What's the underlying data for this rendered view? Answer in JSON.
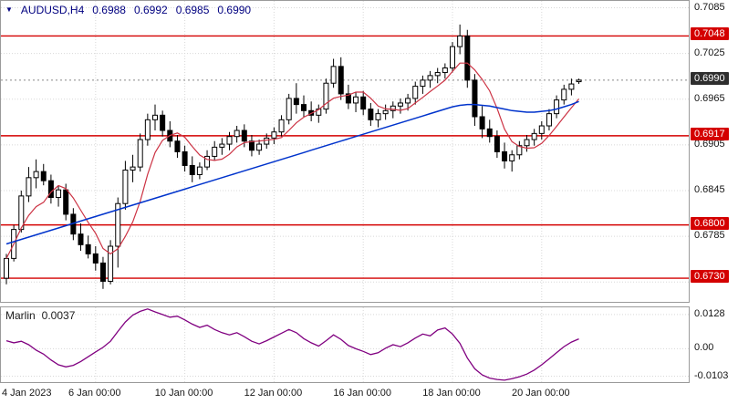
{
  "header": {
    "symbol": "AUDUSD,H4",
    "open": "0.6988",
    "high": "0.6992",
    "low": "0.6985",
    "close": "0.6990"
  },
  "colors": {
    "level_line": "#d40000",
    "level_badge_bg": "#d40000",
    "current_badge_bg": "#2e2e2e",
    "candle_up_fill": "#ffffff",
    "candle_down_fill": "#000000",
    "candle_stroke": "#000000",
    "ma_red": "#cc3344",
    "ma_blue": "#0033cc",
    "marlin_line": "#800080",
    "grid": "#d8d8d8",
    "header_text": "#000080"
  },
  "chart_data": [
    {
      "type": "candlestick",
      "title": "AUDUSD H4 price chart",
      "price_range": [
        0.6699,
        0.7094
      ],
      "grid_prices": [
        0.7085,
        0.7025,
        0.6965,
        0.6905,
        0.6845,
        0.6785,
        0.6725
      ],
      "axis_labels": [
        {
          "text": "0.7085",
          "price": 0.7085
        },
        {
          "text": "0.7025",
          "price": 0.7025
        },
        {
          "text": "0.6965",
          "price": 0.6965
        },
        {
          "text": "0.6905",
          "price": 0.6905
        },
        {
          "text": "0.6845",
          "price": 0.6845
        },
        {
          "text": "0.6785",
          "price": 0.6785
        }
      ],
      "levels": [
        {
          "text": "0.7048",
          "price": 0.7048
        },
        {
          "text": "0.6917",
          "price": 0.6917
        },
        {
          "text": "0.6800",
          "price": 0.68
        },
        {
          "text": "0.6730",
          "price": 0.673
        }
      ],
      "current_price": {
        "text": "0.6990",
        "price": 0.699
      },
      "time_labels": [
        {
          "text": "4 Jan 2023",
          "bar": 0
        },
        {
          "text": "6 Jan 00:00",
          "bar": 12
        },
        {
          "text": "10 Jan 00:00",
          "bar": 24
        },
        {
          "text": "12 Jan 00:00",
          "bar": 36
        },
        {
          "text": "16 Jan 00:00",
          "bar": 48
        },
        {
          "text": "18 Jan 00:00",
          "bar": 60
        },
        {
          "text": "20 Jan 00:00",
          "bar": 72
        }
      ],
      "ma_red_period": 6,
      "candles": [
        [
          0.673,
          0.6762,
          0.6722,
          0.6756
        ],
        [
          0.6756,
          0.68,
          0.6752,
          0.6794
        ],
        [
          0.6794,
          0.6845,
          0.679,
          0.6838
        ],
        [
          0.6838,
          0.6876,
          0.683,
          0.6862
        ],
        [
          0.6862,
          0.6886,
          0.6848,
          0.687
        ],
        [
          0.687,
          0.688,
          0.6852,
          0.6858
        ],
        [
          0.6858,
          0.6866,
          0.6828,
          0.6836
        ],
        [
          0.6836,
          0.6852,
          0.6824,
          0.6846
        ],
        [
          0.6846,
          0.6854,
          0.6806,
          0.6814
        ],
        [
          0.6814,
          0.6822,
          0.678,
          0.6788
        ],
        [
          0.6788,
          0.6802,
          0.6766,
          0.6774
        ],
        [
          0.6774,
          0.6786,
          0.6756,
          0.6762
        ],
        [
          0.6762,
          0.6772,
          0.674,
          0.675
        ],
        [
          0.675,
          0.6758,
          0.6716,
          0.6726
        ],
        [
          0.6726,
          0.678,
          0.6722,
          0.6772
        ],
        [
          0.6772,
          0.6836,
          0.6744,
          0.6828
        ],
        [
          0.6828,
          0.6884,
          0.682,
          0.6872
        ],
        [
          0.6872,
          0.6892,
          0.6856,
          0.6876
        ],
        [
          0.6876,
          0.692,
          0.687,
          0.6912
        ],
        [
          0.6912,
          0.6946,
          0.6904,
          0.6938
        ],
        [
          0.6938,
          0.6958,
          0.6924,
          0.6944
        ],
        [
          0.6944,
          0.695,
          0.6916,
          0.6924
        ],
        [
          0.6924,
          0.6936,
          0.6902,
          0.691
        ],
        [
          0.691,
          0.6918,
          0.6888,
          0.6896
        ],
        [
          0.6896,
          0.6904,
          0.687,
          0.6878
        ],
        [
          0.6878,
          0.689,
          0.6856,
          0.6866
        ],
        [
          0.6866,
          0.6882,
          0.686,
          0.6876
        ],
        [
          0.6876,
          0.6898,
          0.6872,
          0.689
        ],
        [
          0.689,
          0.691,
          0.6884,
          0.6902
        ],
        [
          0.6902,
          0.6914,
          0.6892,
          0.6906
        ],
        [
          0.6906,
          0.6922,
          0.6898,
          0.6916
        ],
        [
          0.6916,
          0.693,
          0.6908,
          0.6924
        ],
        [
          0.6924,
          0.6932,
          0.6902,
          0.691
        ],
        [
          0.691,
          0.6918,
          0.689,
          0.6898
        ],
        [
          0.6898,
          0.6912,
          0.6892,
          0.6906
        ],
        [
          0.6906,
          0.692,
          0.69,
          0.6914
        ],
        [
          0.6914,
          0.6928,
          0.6906,
          0.6922
        ],
        [
          0.6922,
          0.6944,
          0.6916,
          0.6938
        ],
        [
          0.6938,
          0.6972,
          0.6932,
          0.6966
        ],
        [
          0.6966,
          0.6986,
          0.6946,
          0.6958
        ],
        [
          0.6958,
          0.697,
          0.6942,
          0.695
        ],
        [
          0.695,
          0.6962,
          0.6936,
          0.6944
        ],
        [
          0.6944,
          0.6958,
          0.6934,
          0.6952
        ],
        [
          0.6952,
          0.6992,
          0.6946,
          0.6986
        ],
        [
          0.6986,
          0.7018,
          0.698,
          0.7008
        ],
        [
          0.7008,
          0.702,
          0.6964,
          0.6972
        ],
        [
          0.6972,
          0.6984,
          0.6952,
          0.696
        ],
        [
          0.696,
          0.6974,
          0.6948,
          0.6968
        ],
        [
          0.6968,
          0.6976,
          0.6944,
          0.6952
        ],
        [
          0.6952,
          0.696,
          0.693,
          0.6938
        ],
        [
          0.6938,
          0.6952,
          0.6928,
          0.6946
        ],
        [
          0.6946,
          0.6958,
          0.6938,
          0.695
        ],
        [
          0.695,
          0.6962,
          0.694,
          0.6956
        ],
        [
          0.6956,
          0.6966,
          0.6946,
          0.696
        ],
        [
          0.696,
          0.6972,
          0.695,
          0.6966
        ],
        [
          0.6966,
          0.6988,
          0.6958,
          0.6982
        ],
        [
          0.6982,
          0.6996,
          0.6972,
          0.699
        ],
        [
          0.699,
          0.7002,
          0.698,
          0.6996
        ],
        [
          0.6996,
          0.7006,
          0.6986,
          0.7
        ],
        [
          0.7,
          0.7012,
          0.6992,
          0.7006
        ],
        [
          0.7006,
          0.704,
          0.7,
          0.7034
        ],
        [
          0.7034,
          0.7063,
          0.7024,
          0.7048
        ],
        [
          0.7048,
          0.7056,
          0.698,
          0.699
        ],
        [
          0.699,
          0.6998,
          0.693,
          0.6942
        ],
        [
          0.6942,
          0.6956,
          0.6914,
          0.6926
        ],
        [
          0.6926,
          0.6938,
          0.6908,
          0.6916
        ],
        [
          0.6916,
          0.6924,
          0.6888,
          0.6896
        ],
        [
          0.6896,
          0.6908,
          0.6874,
          0.6884
        ],
        [
          0.6884,
          0.6898,
          0.687,
          0.6892
        ],
        [
          0.6892,
          0.691,
          0.6886,
          0.6904
        ],
        [
          0.6904,
          0.6918,
          0.6896,
          0.6912
        ],
        [
          0.6912,
          0.6926,
          0.6904,
          0.692
        ],
        [
          0.692,
          0.6936,
          0.6912,
          0.693
        ],
        [
          0.693,
          0.6952,
          0.6924,
          0.6946
        ],
        [
          0.6946,
          0.697,
          0.694,
          0.6964
        ],
        [
          0.6964,
          0.6984,
          0.6958,
          0.6978
        ],
        [
          0.6978,
          0.6992,
          0.697,
          0.6985
        ],
        [
          0.6988,
          0.6992,
          0.6985,
          0.699
        ]
      ],
      "ma_blue": [
        0.6775,
        0.6778,
        0.6781,
        0.6784,
        0.6787,
        0.679,
        0.6793,
        0.6796,
        0.6799,
        0.6802,
        0.6805,
        0.6808,
        0.6811,
        0.6814,
        0.6817,
        0.682,
        0.6823,
        0.6826,
        0.6829,
        0.6832,
        0.6835,
        0.6838,
        0.6841,
        0.6844,
        0.6847,
        0.685,
        0.6853,
        0.6856,
        0.6859,
        0.6862,
        0.6865,
        0.6868,
        0.6871,
        0.6874,
        0.6877,
        0.688,
        0.6883,
        0.6886,
        0.6889,
        0.6892,
        0.6895,
        0.6898,
        0.6901,
        0.6904,
        0.6907,
        0.691,
        0.6913,
        0.6916,
        0.6919,
        0.6922,
        0.6925,
        0.6928,
        0.6931,
        0.6934,
        0.6937,
        0.694,
        0.6943,
        0.6946,
        0.6949,
        0.6952,
        0.6955,
        0.6957,
        0.6958,
        0.6958,
        0.6957,
        0.6956,
        0.6954,
        0.6952,
        0.695,
        0.6949,
        0.6948,
        0.6948,
        0.6949,
        0.695,
        0.6952,
        0.6955,
        0.6958,
        0.6962
      ]
    },
    {
      "type": "line",
      "name": "Marlin",
      "value_label": "0.0037",
      "range": [
        -0.0125,
        0.0155
      ],
      "axis_labels": [
        {
          "text": "0.0128",
          "value": 0.0128
        },
        {
          "text": "0.00",
          "value": 0.0
        },
        {
          "text": "-0.0103",
          "value": -0.0103
        }
      ],
      "values": [
        0.003,
        0.0022,
        0.0028,
        0.0015,
        -0.0005,
        -0.002,
        -0.0042,
        -0.006,
        -0.0068,
        -0.0062,
        -0.0048,
        -0.003,
        -0.0012,
        0.0005,
        0.0028,
        0.0065,
        0.01,
        0.0126,
        0.014,
        0.0149,
        0.0138,
        0.0128,
        0.0118,
        0.0122,
        0.0108,
        0.0092,
        0.008,
        0.0088,
        0.0072,
        0.006,
        0.0052,
        0.006,
        0.0045,
        0.0028,
        0.0018,
        0.003,
        0.0044,
        0.0058,
        0.0072,
        0.006,
        0.0038,
        0.0022,
        0.001,
        0.003,
        0.0052,
        0.0035,
        0.0012,
        0.0,
        -0.001,
        -0.0022,
        -0.0015,
        0.0002,
        0.0015,
        0.0008,
        0.0022,
        0.004,
        0.0055,
        0.0048,
        0.007,
        0.0078,
        0.0055,
        0.002,
        -0.0035,
        -0.0075,
        -0.0098,
        -0.011,
        -0.0115,
        -0.0118,
        -0.0112,
        -0.0105,
        -0.0095,
        -0.008,
        -0.006,
        -0.0038,
        -0.0015,
        0.0008,
        0.0025,
        0.0037
      ]
    }
  ]
}
